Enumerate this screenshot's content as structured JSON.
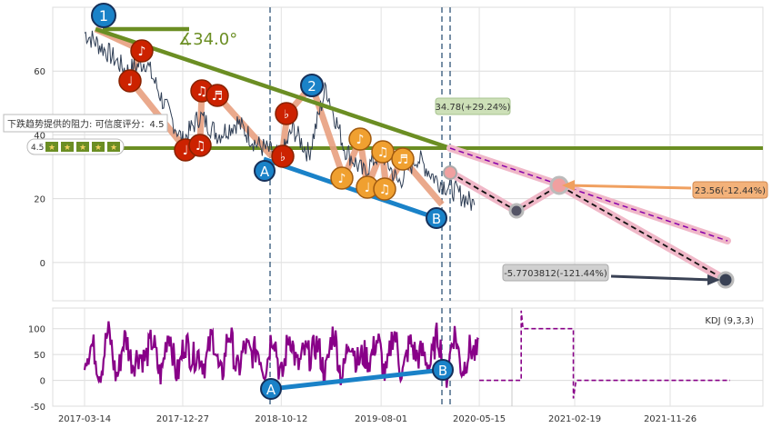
{
  "chart_data": [
    {
      "type": "line",
      "panel": "price",
      "ylim": [
        -12,
        80
      ],
      "yticks": [
        "0",
        "20",
        "40",
        "60"
      ],
      "grid": true,
      "series": [
        {
          "x": [
            "2017-03-14",
            "2017-05-20",
            "2017-07-15",
            "2017-09-10",
            "2017-11-01",
            "2017-12-27",
            "2018-02-15",
            "2018-04-10",
            "2018-06-05",
            "2018-08-01",
            "2018-10-12",
            "2018-11-15",
            "2019-01-01",
            "2019-02-20",
            "2019-04-15",
            "2019-06-10",
            "2019-08-01",
            "2019-09-20",
            "2019-11-15",
            "2020-01-10",
            "2020-03-10",
            "2020-05-01"
          ],
          "values": [
            72,
            66,
            60,
            63,
            50,
            38,
            46,
            40,
            44,
            37,
            33,
            42,
            34,
            55,
            36,
            28,
            35,
            25,
            33,
            26,
            22,
            18
          ]
        }
      ],
      "annotations": {
        "angle_label": "∡34.0°",
        "resistance_label": "下跌趋势提供的阻力: 可信度评分：4.5",
        "rating_value": "4.5",
        "rating_stars": 5,
        "peak_labels": [
          "1",
          "2"
        ],
        "trend_labels": [
          "A",
          "B"
        ],
        "target_label": "34.78(+29.24%)",
        "forecast_label": "23.56(-12.44%)",
        "low_label": "-5.7703812(-121.44%)",
        "support_line_level": 35,
        "colors": {
          "price_line": "#2f3e55",
          "trend_green": "#6b8e23",
          "trend_blue": "#1a82c8",
          "channel_salmon": "#e8a080",
          "note_red": "#cc2200",
          "note_orange": "#f0a030",
          "forecast_pink": "#f0b8c8",
          "forecast_purple": "#8800aa",
          "kdj_purple": "#880088",
          "label_green_bg": "#cde0b8",
          "label_orange_bg": "#f3b27a",
          "label_gray_bg": "#d0d0d0"
        }
      }
    },
    {
      "type": "line",
      "panel": "kdj",
      "legend": "KDJ (9,3,3)",
      "ylim": [
        -50,
        140
      ],
      "yticks": [
        "-50",
        "0",
        "50",
        "100"
      ],
      "xticks": [
        "2017-03-14",
        "2017-12-27",
        "2018-10-12",
        "2019-08-01",
        "2020-05-15",
        "2021-02-19",
        "2021-11-26"
      ],
      "grid": true
    }
  ]
}
